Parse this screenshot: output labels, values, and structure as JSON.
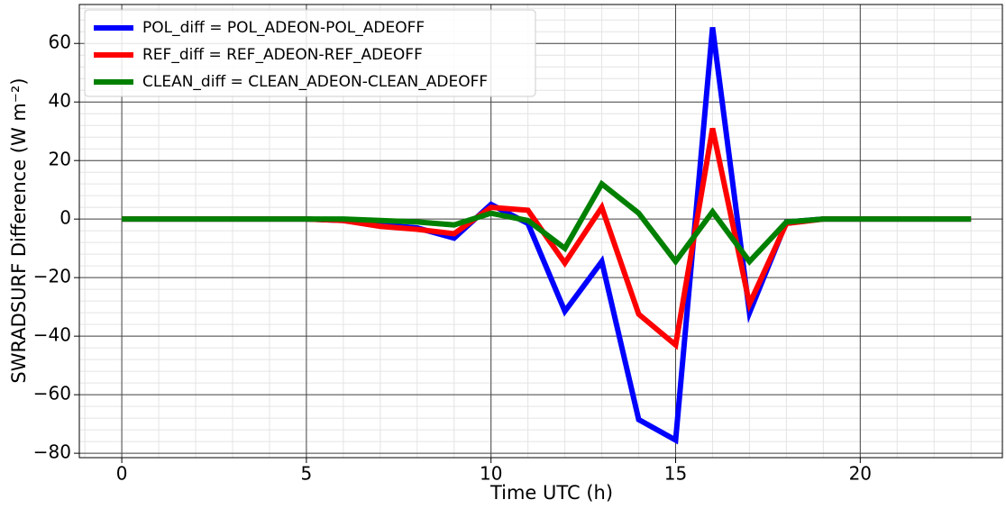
{
  "chart_data": {
    "type": "line",
    "x": [
      0,
      1,
      2,
      3,
      4,
      5,
      6,
      7,
      8,
      9,
      10,
      11,
      12,
      13,
      14,
      15,
      16,
      17,
      18,
      19,
      20,
      21,
      22,
      23
    ],
    "series": [
      {
        "name": "POL_diff = POL_ADEON-POL_ADEOFF",
        "color": "#0000ff",
        "values": [
          0,
          0,
          0,
          0,
          0,
          0,
          -0.5,
          -2,
          -3,
          -6.5,
          5,
          -1.5,
          -31.5,
          -14.5,
          -68.5,
          -75.5,
          65.5,
          -32,
          -1,
          0,
          0,
          0,
          0,
          0
        ]
      },
      {
        "name": "REF_diff = REF_ADEON-REF_ADEOFF",
        "color": "#ff0000",
        "values": [
          0,
          0,
          0,
          0,
          0,
          0,
          -0.5,
          -2.5,
          -3.5,
          -5,
          4,
          3,
          -15,
          4,
          -32.5,
          -43,
          31,
          -29,
          -1.5,
          0,
          0,
          0,
          0,
          0
        ]
      },
      {
        "name": "CLEAN_diff = CLEAN_ADEON-CLEAN_ADEOFF",
        "color": "#008000",
        "values": [
          0,
          0,
          0,
          0,
          0,
          0,
          0,
          -0.5,
          -1,
          -2,
          2,
          -0.5,
          -10,
          12,
          2,
          -14.5,
          2.5,
          -14.5,
          -1,
          0,
          0,
          0,
          0,
          0
        ]
      }
    ],
    "xlabel": "Time UTC (h)",
    "ylabel": "SWRADSURF Difference (W m⁻²)",
    "xlim": [
      -1.15,
      23.85
    ],
    "ylim": [
      -81.5,
      73.3
    ],
    "xticks": [
      0,
      5,
      10,
      15,
      20
    ],
    "yticks": [
      {
        "value": -80,
        "label": "−80"
      },
      {
        "value": -60,
        "label": "−60"
      },
      {
        "value": -40,
        "label": "−40"
      },
      {
        "value": -20,
        "label": "−20"
      },
      0,
      20,
      40,
      60
    ],
    "grid": true,
    "minor_grid": true,
    "legend": "upper left"
  }
}
